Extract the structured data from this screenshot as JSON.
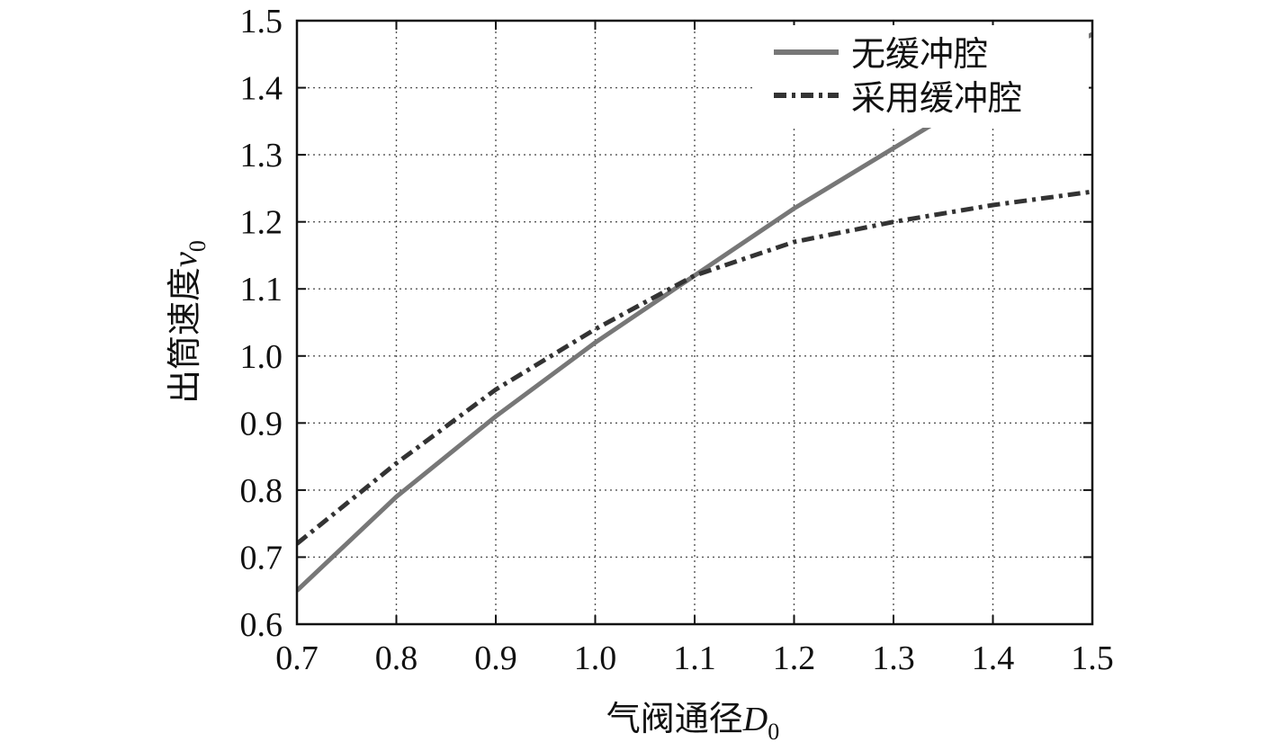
{
  "chart_data": {
    "type": "line",
    "xlabel": {
      "main": "气阀通径",
      "symbol": "D",
      "subscript": "0"
    },
    "ylabel": {
      "main": "出筒速度",
      "symbol": "v",
      "subscript": "0"
    },
    "xlim": [
      0.7,
      1.5
    ],
    "ylim": [
      0.6,
      1.5
    ],
    "xticks": [
      "0.7",
      "0.8",
      "0.9",
      "1.0",
      "1.1",
      "1.2",
      "1.3",
      "1.4",
      "1.5"
    ],
    "yticks": [
      "0.6",
      "0.7",
      "0.8",
      "0.9",
      "1.0",
      "1.1",
      "1.2",
      "1.3",
      "1.4",
      "1.5"
    ],
    "grid": true,
    "legend_position": "top-right",
    "series": [
      {
        "name": "无缓冲腔",
        "style": "solid",
        "color": "#777777",
        "x": [
          0.7,
          0.8,
          0.9,
          1.0,
          1.1,
          1.2,
          1.3,
          1.4,
          1.5
        ],
        "y": [
          0.65,
          0.79,
          0.91,
          1.02,
          1.12,
          1.22,
          1.31,
          1.4,
          1.48
        ]
      },
      {
        "name": "采用缓冲腔",
        "style": "dashdot",
        "color": "#333333",
        "x": [
          0.7,
          0.8,
          0.9,
          1.0,
          1.1,
          1.2,
          1.3,
          1.4,
          1.5
        ],
        "y": [
          0.72,
          0.84,
          0.95,
          1.04,
          1.12,
          1.17,
          1.2,
          1.225,
          1.245
        ]
      }
    ]
  }
}
